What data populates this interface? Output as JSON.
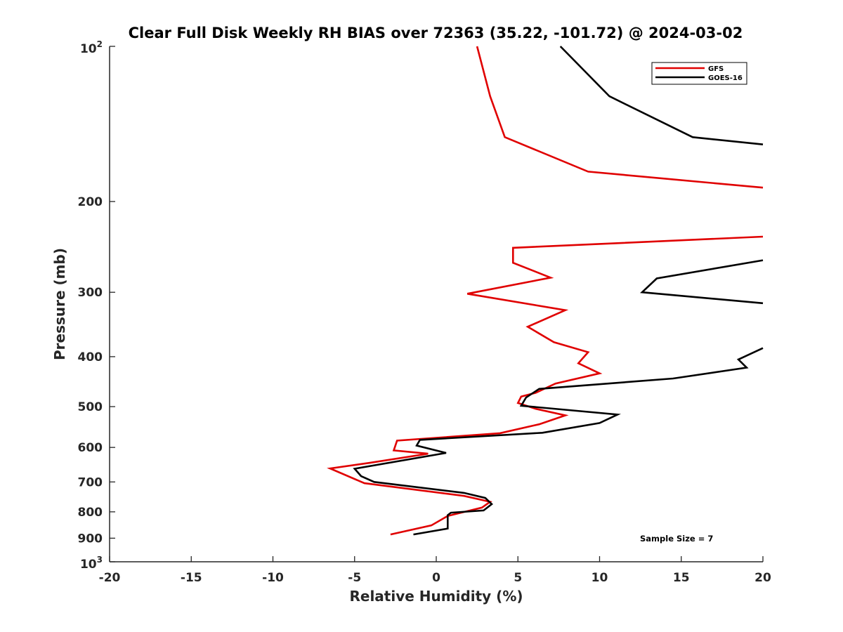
{
  "chart_data": {
    "type": "line",
    "title": "Clear Full Disk Weekly RH BIAS over 72363 (35.22, -101.72) @ 2024-03-02",
    "xlabel": "Relative Humidity (%)",
    "ylabel": "Pressure (mb)",
    "xlim": [
      -20,
      20
    ],
    "ylim": [
      100,
      1000
    ],
    "yscale": "log",
    "yaxis_reversed": true,
    "grid": false,
    "legend_position": "top-right",
    "x_ticks": [
      "-20",
      "-15",
      "-10",
      "-5",
      "0",
      "5",
      "10",
      "15",
      "20"
    ],
    "y_ticks": [
      {
        "value": 200,
        "label": "200"
      },
      {
        "value": 300,
        "label": "300"
      },
      {
        "value": 400,
        "label": "400"
      },
      {
        "value": 500,
        "label": "500"
      },
      {
        "value": 600,
        "label": "600"
      },
      {
        "value": 700,
        "label": "700"
      },
      {
        "value": 800,
        "label": "800"
      },
      {
        "value": 900,
        "label": "900"
      }
    ],
    "y_top_label": {
      "base": "10",
      "exp": "2"
    },
    "y_bottom_label": {
      "base": "10",
      "exp": "3"
    },
    "series": [
      {
        "name": "GFS",
        "color": "#e00000",
        "points": [
          [
            2.5,
            100
          ],
          [
            3.3,
            125
          ],
          [
            4.2,
            150
          ],
          [
            9.3,
            175
          ],
          [
            20,
            188
          ],
          null,
          [
            20,
            234
          ],
          [
            4.7,
            246
          ],
          [
            4.7,
            263
          ],
          [
            7.0,
            281
          ],
          [
            1.9,
            302
          ],
          [
            7.9,
            325
          ],
          [
            5.6,
            350
          ],
          [
            7.2,
            375
          ],
          [
            9.3,
            392
          ],
          [
            8.7,
            412
          ],
          [
            10.0,
            431
          ],
          [
            7.3,
            451
          ],
          [
            6.1,
            470
          ],
          [
            5.2,
            478
          ],
          [
            5.0,
            492
          ],
          [
            6.1,
            505
          ],
          [
            7.9,
            520
          ],
          [
            6.3,
            541
          ],
          [
            3.9,
            563
          ],
          [
            -2.4,
            582
          ],
          [
            -2.6,
            608
          ],
          [
            -0.5,
            617
          ],
          [
            -4.1,
            643
          ],
          [
            -6.5,
            659
          ],
          [
            -4.4,
            704
          ],
          [
            1.7,
            745
          ],
          [
            3.3,
            765
          ],
          [
            2.8,
            785
          ],
          [
            0.7,
            815
          ],
          [
            -0.3,
            850
          ],
          [
            -2.8,
            885
          ]
        ]
      },
      {
        "name": "GOES-16",
        "color": "#000000",
        "points": [
          [
            7.6,
            100
          ],
          [
            10.6,
            125
          ],
          [
            15.7,
            150
          ],
          [
            20,
            155
          ],
          null,
          [
            20,
            260
          ],
          [
            13.5,
            282
          ],
          [
            12.6,
            300
          ],
          [
            20,
            315
          ],
          null,
          [
            20,
            385
          ],
          [
            18.5,
            405
          ],
          [
            19.0,
            420
          ],
          [
            14.5,
            441
          ],
          [
            6.3,
            462
          ],
          [
            5.5,
            480
          ],
          [
            5.2,
            498
          ],
          [
            11.1,
            518
          ],
          [
            10.0,
            538
          ],
          [
            6.5,
            562
          ],
          [
            -1.0,
            580
          ],
          [
            -1.2,
            595
          ],
          [
            0.6,
            615
          ],
          [
            -5.0,
            660
          ],
          [
            -4.6,
            682
          ],
          [
            -3.8,
            700
          ],
          [
            1.7,
            735
          ],
          [
            3.0,
            752
          ],
          [
            3.4,
            773
          ],
          [
            2.9,
            795
          ],
          [
            0.9,
            803
          ],
          [
            0.7,
            812
          ],
          [
            0.7,
            862
          ],
          [
            -1.4,
            885
          ]
        ]
      }
    ],
    "annotation": "Sample Size = 7"
  }
}
